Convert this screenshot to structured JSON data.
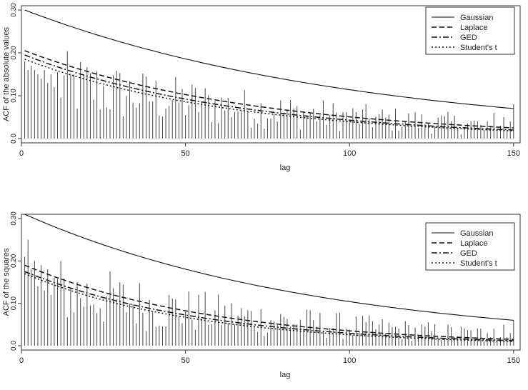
{
  "chart_data": [
    {
      "type": "bar",
      "ylabel": "ACF of the absolute values",
      "xlabel": "lag",
      "xlim": [
        0,
        152
      ],
      "ylim": [
        -0.01,
        0.31
      ],
      "xticks": [
        0,
        50,
        100,
        150
      ],
      "xtick_labels": [
        "0",
        "50",
        "100",
        "150"
      ],
      "yticks": [
        0.0,
        0.1,
        0.2,
        0.3
      ],
      "ytick_labels": [
        "0.0",
        "0.10",
        "0.20",
        "0.30"
      ],
      "grid": false,
      "legend_position": "top-right",
      "bars": {
        "lags": [
          1,
          150
        ],
        "values_first": [
          0.18,
          0.16,
          0.17,
          0.16,
          0.15,
          0.14,
          0.16,
          0.13,
          0.15,
          0.12
        ],
        "values_last": [
          0.02,
          0.04,
          0.03,
          0.06,
          0.02,
          0.03,
          0.05,
          0.02,
          0.04,
          0.08
        ]
      },
      "series": [
        {
          "name": "Gaussian",
          "style": "solid",
          "lag": [
            1,
            150
          ],
          "start": 0.3,
          "end": 0.07
        },
        {
          "name": "Laplace",
          "style": "dashed",
          "lag": [
            1,
            150
          ],
          "start": 0.205,
          "end": 0.025
        },
        {
          "name": "GED",
          "style": "dashdot",
          "lag": [
            1,
            150
          ],
          "start": 0.195,
          "end": 0.02
        },
        {
          "name": "Student's t",
          "style": "dotted",
          "lag": [
            1,
            150
          ],
          "start": 0.185,
          "end": 0.018
        }
      ]
    },
    {
      "type": "bar",
      "ylabel": "ACF of the squares",
      "xlabel": "lag",
      "xlim": [
        0,
        152
      ],
      "ylim": [
        -0.01,
        0.31
      ],
      "xticks": [
        0,
        50,
        100,
        150
      ],
      "xtick_labels": [
        "0",
        "50",
        "100",
        "150"
      ],
      "yticks": [
        0.0,
        0.1,
        0.2,
        0.3
      ],
      "ytick_labels": [
        "0.0",
        "0.10",
        "0.20",
        "0.30"
      ],
      "grid": false,
      "legend_position": "top-right",
      "bars": {
        "lags": [
          1,
          150
        ],
        "values_first": [
          0.21,
          0.25,
          0.18,
          0.2,
          0.14,
          0.19,
          0.13,
          0.18,
          0.12,
          0.16
        ],
        "values_last": [
          0.01,
          0.03,
          0.02,
          0.04,
          0.01,
          0.02,
          0.05,
          0.02,
          0.03,
          0.06
        ]
      },
      "series": [
        {
          "name": "Gaussian",
          "style": "solid",
          "lag": [
            1,
            150
          ],
          "start": 0.31,
          "end": 0.06
        },
        {
          "name": "Laplace",
          "style": "dashed",
          "lag": [
            1,
            150
          ],
          "start": 0.19,
          "end": 0.015
        },
        {
          "name": "GED",
          "style": "dashdot",
          "lag": [
            1,
            150
          ],
          "start": 0.175,
          "end": 0.012
        },
        {
          "name": "Student's t",
          "style": "dotted",
          "lag": [
            1,
            150
          ],
          "start": 0.17,
          "end": 0.01
        }
      ]
    }
  ]
}
